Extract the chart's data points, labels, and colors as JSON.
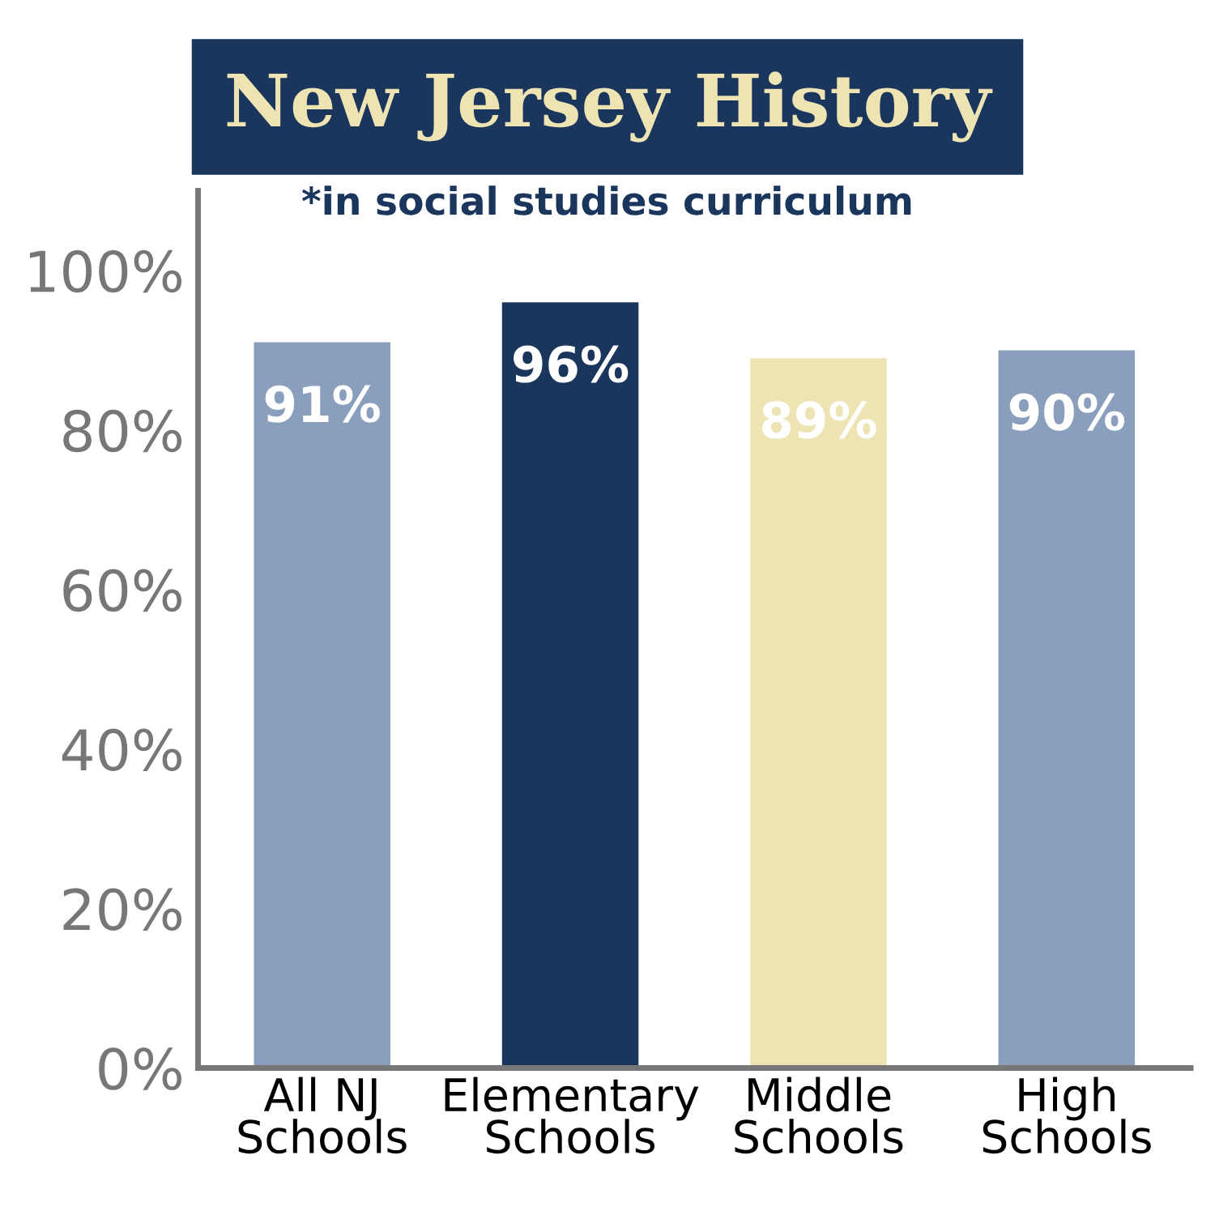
{
  "chart_data": {
    "type": "bar",
    "title": "New Jersey History",
    "subtitle": "*in social studies curriculum",
    "categories": [
      "All NJ\nSchools",
      "Elementary\nSchools",
      "Middle\nSchools",
      "High\nSchools"
    ],
    "values": [
      91,
      96,
      89,
      90
    ],
    "colors": [
      "#8a9fbe",
      "#1a365d",
      "#ede3b3",
      "#8a9fbe"
    ],
    "data_labels": true,
    "ylim": [
      0,
      110
    ],
    "yticks": [
      {
        "value": 0,
        "label": "0%"
      },
      {
        "value": 20,
        "label": "20%"
      },
      {
        "value": 40,
        "label": "40%"
      },
      {
        "value": 60,
        "label": "60%"
      },
      {
        "value": 80,
        "label": "80%"
      },
      {
        "value": 100,
        "label": "100%"
      }
    ],
    "value_labels": [
      "91%",
      "96%",
      "89%",
      "90%"
    ],
    "grid": false,
    "legend": false
  }
}
